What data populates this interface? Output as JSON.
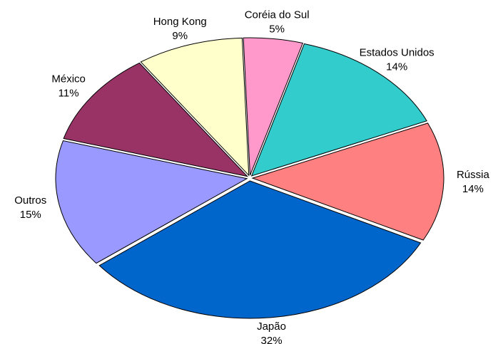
{
  "chart_data": {
    "type": "pie",
    "categories": [
      "Coréia do Sul",
      "Estados Unidos",
      "Rússia",
      "Japão",
      "Outros",
      "México",
      "Hong Kong"
    ],
    "values": [
      5,
      14,
      14,
      32,
      15,
      11,
      9
    ],
    "value_labels": [
      "5%",
      "14%",
      "14%",
      "32%",
      "15%",
      "11%",
      "9%"
    ],
    "colors": [
      "#ff99cc",
      "#33cccc",
      "#ff8080",
      "#0066cc",
      "#9999ff",
      "#993366",
      "#ffffcc"
    ]
  }
}
